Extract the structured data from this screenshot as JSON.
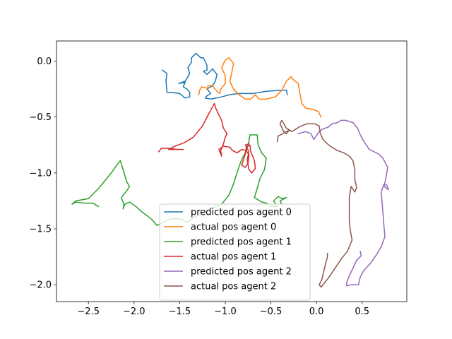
{
  "chart_data": {
    "type": "line",
    "title": "",
    "xlabel": "",
    "ylabel": "",
    "xlim": [
      -2.85,
      0.99
    ],
    "ylim": [
      -2.15,
      0.18
    ],
    "x_ticks": [
      -2.5,
      -2.0,
      -1.5,
      -1.0,
      -0.5,
      0.0,
      0.5
    ],
    "x_tick_labels": [
      "−2.5",
      "−2.0",
      "−1.5",
      "−1.0",
      "−0.5",
      "0.0",
      "0.5"
    ],
    "y_ticks": [
      0.0,
      -0.5,
      -1.0,
      -1.5,
      -2.0
    ],
    "y_tick_labels": [
      "0.0",
      "−0.5",
      "−1.0",
      "−1.5",
      "−2.0"
    ],
    "grid": false,
    "legend_position": "lower-center",
    "series": [
      {
        "name": "predicted pos agent 0",
        "color": "#1f77b4",
        "points": [
          [
            -1.69,
            -0.08
          ],
          [
            -1.64,
            -0.11
          ],
          [
            -1.65,
            -0.18
          ],
          [
            -1.64,
            -0.26
          ],
          [
            -1.64,
            -0.28
          ],
          [
            -1.6,
            -0.28
          ],
          [
            -1.5,
            -0.29
          ],
          [
            -1.44,
            -0.33
          ],
          [
            -1.39,
            -0.32
          ],
          [
            -1.39,
            -0.28
          ],
          [
            -1.42,
            -0.25
          ],
          [
            -1.46,
            -0.23
          ],
          [
            -1.44,
            -0.19
          ],
          [
            -1.51,
            -0.2
          ],
          [
            -1.44,
            -0.18
          ],
          [
            -1.41,
            -0.14
          ],
          [
            -1.39,
            -0.11
          ],
          [
            -1.41,
            -0.06
          ],
          [
            -1.37,
            -0.01
          ],
          [
            -1.37,
            0.03
          ],
          [
            -1.32,
            0.07
          ],
          [
            -1.27,
            0.03
          ],
          [
            -1.24,
            0.03
          ],
          [
            -1.2,
            -0.04
          ],
          [
            -1.2,
            -0.08
          ],
          [
            -1.24,
            -0.09
          ],
          [
            -1.2,
            -0.12
          ],
          [
            -1.14,
            -0.07
          ],
          [
            -1.09,
            -0.12
          ],
          [
            -1.11,
            -0.18
          ],
          [
            -1.14,
            -0.22
          ],
          [
            -1.2,
            -0.25
          ],
          [
            -1.16,
            -0.29
          ],
          [
            -1.2,
            -0.31
          ],
          [
            -1.22,
            -0.33
          ],
          [
            -1.16,
            -0.34
          ],
          [
            -1.04,
            -0.32
          ],
          [
            -0.95,
            -0.3
          ],
          [
            -0.85,
            -0.29
          ],
          [
            -0.7,
            -0.29
          ],
          [
            -0.55,
            -0.27
          ],
          [
            -0.38,
            -0.26
          ],
          [
            -0.33,
            -0.26
          ],
          [
            -0.32,
            -0.3
          ]
        ]
      },
      {
        "name": "actual pos agent 0",
        "color": "#ff7f0e",
        "points": [
          [
            -1.29,
            -0.3
          ],
          [
            -1.28,
            -0.26
          ],
          [
            -1.26,
            -0.23
          ],
          [
            -1.21,
            -0.24
          ],
          [
            -1.19,
            -0.25
          ],
          [
            -1.19,
            -0.22
          ],
          [
            -1.14,
            -0.22
          ],
          [
            -1.09,
            -0.27
          ],
          [
            -1.06,
            -0.29
          ],
          [
            -1.05,
            -0.25
          ],
          [
            -1.0,
            -0.2
          ],
          [
            -1.0,
            -0.13
          ],
          [
            -1.04,
            -0.06
          ],
          [
            -1.0,
            0.01
          ],
          [
            -0.96,
            0.03
          ],
          [
            -0.91,
            -0.02
          ],
          [
            -0.93,
            -0.11
          ],
          [
            -0.95,
            -0.18
          ],
          [
            -0.91,
            -0.25
          ],
          [
            -0.85,
            -0.3
          ],
          [
            -0.78,
            -0.34
          ],
          [
            -0.72,
            -0.34
          ],
          [
            -0.67,
            -0.3
          ],
          [
            -0.63,
            -0.34
          ],
          [
            -0.55,
            -0.34
          ],
          [
            -0.45,
            -0.32
          ],
          [
            -0.38,
            -0.26
          ],
          [
            -0.33,
            -0.18
          ],
          [
            -0.28,
            -0.14
          ],
          [
            -0.25,
            -0.17
          ],
          [
            -0.2,
            -0.2
          ],
          [
            -0.18,
            -0.3
          ],
          [
            -0.16,
            -0.38
          ],
          [
            -0.12,
            -0.42
          ],
          [
            -0.05,
            -0.43
          ],
          [
            0.02,
            -0.45
          ],
          [
            0.05,
            -0.5
          ]
        ]
      },
      {
        "name": "predicted pos agent 1",
        "color": "#2ca02c",
        "points": [
          [
            -2.39,
            -1.3
          ],
          [
            -2.45,
            -1.27
          ],
          [
            -2.55,
            -1.27
          ],
          [
            -2.64,
            -1.26
          ],
          [
            -2.68,
            -1.28
          ],
          [
            -2.64,
            -1.25
          ],
          [
            -2.5,
            -1.23
          ],
          [
            -2.39,
            -1.14
          ],
          [
            -2.32,
            -1.07
          ],
          [
            -2.25,
            -1.0
          ],
          [
            -2.18,
            -0.92
          ],
          [
            -2.15,
            -0.89
          ],
          [
            -2.12,
            -0.97
          ],
          [
            -2.08,
            -1.08
          ],
          [
            -2.05,
            -1.12
          ],
          [
            -2.08,
            -1.16
          ],
          [
            -2.14,
            -1.22
          ],
          [
            -2.11,
            -1.28
          ],
          [
            -2.12,
            -1.32
          ],
          [
            -2.1,
            -1.28
          ],
          [
            -2.05,
            -1.26
          ],
          [
            -1.98,
            -1.3
          ],
          [
            -1.91,
            -1.35
          ],
          [
            -1.86,
            -1.38
          ],
          [
            -1.8,
            -1.42
          ],
          [
            -1.75,
            -1.47
          ],
          [
            -1.7,
            -1.45
          ],
          [
            -1.6,
            -1.41
          ],
          [
            -1.5,
            -1.41
          ],
          [
            -1.42,
            -1.44
          ],
          [
            -1.35,
            -1.4
          ],
          [
            -1.25,
            -1.36
          ],
          [
            -1.14,
            -1.31
          ],
          [
            -1.04,
            -1.28
          ],
          [
            -0.96,
            -1.2
          ],
          [
            -0.91,
            -1.1
          ],
          [
            -0.88,
            -1.02
          ],
          [
            -0.83,
            -0.9
          ],
          [
            -0.77,
            -0.8
          ],
          [
            -0.74,
            -0.72
          ],
          [
            -0.73,
            -0.66
          ],
          [
            -0.65,
            -0.66
          ],
          [
            -0.64,
            -0.75
          ],
          [
            -0.6,
            -0.82
          ],
          [
            -0.55,
            -0.87
          ],
          [
            -0.57,
            -0.97
          ],
          [
            -0.62,
            -1.05
          ],
          [
            -0.65,
            -1.14
          ],
          [
            -0.68,
            -1.22
          ],
          [
            -0.6,
            -1.26
          ],
          [
            -0.55,
            -1.27
          ],
          [
            -0.5,
            -1.3
          ],
          [
            -0.43,
            -1.3
          ],
          [
            -0.47,
            -1.25
          ],
          [
            -0.42,
            -1.21
          ],
          [
            -0.38,
            -1.23
          ],
          [
            -0.33,
            -1.22
          ],
          [
            -0.4,
            -1.25
          ],
          [
            -0.38,
            -1.28
          ]
        ]
      },
      {
        "name": "actual pos agent 1",
        "color": "#d62728",
        "points": [
          [
            -1.73,
            -0.81
          ],
          [
            -1.7,
            -0.78
          ],
          [
            -1.62,
            -0.78
          ],
          [
            -1.53,
            -0.79
          ],
          [
            -1.46,
            -0.79
          ],
          [
            -1.62,
            -0.79
          ],
          [
            -1.55,
            -0.76
          ],
          [
            -1.45,
            -0.73
          ],
          [
            -1.35,
            -0.68
          ],
          [
            -1.25,
            -0.58
          ],
          [
            -1.18,
            -0.47
          ],
          [
            -1.12,
            -0.38
          ],
          [
            -1.1,
            -0.43
          ],
          [
            -1.04,
            -0.53
          ],
          [
            -1.02,
            -0.6
          ],
          [
            -0.98,
            -0.65
          ],
          [
            -1.0,
            -0.68
          ],
          [
            -1.02,
            -0.74
          ],
          [
            -1.05,
            -0.8
          ],
          [
            -1.04,
            -0.85
          ],
          [
            -1.07,
            -0.79
          ],
          [
            -1.02,
            -0.76
          ],
          [
            -0.95,
            -0.77
          ],
          [
            -0.92,
            -0.8
          ],
          [
            -0.87,
            -0.82
          ],
          [
            -0.82,
            -0.79
          ],
          [
            -0.77,
            -0.8
          ],
          [
            -0.74,
            -0.84
          ],
          [
            -0.75,
            -0.91
          ],
          [
            -0.78,
            -0.95
          ],
          [
            -0.82,
            -0.93
          ],
          [
            -0.8,
            -0.88
          ],
          [
            -0.78,
            -0.83
          ],
          [
            -0.77,
            -0.77
          ],
          [
            -0.73,
            -0.75
          ],
          [
            -0.72,
            -0.81
          ],
          [
            -0.68,
            -0.89
          ],
          [
            -0.67,
            -0.96
          ],
          [
            -0.71,
            -1.0
          ],
          [
            -0.74,
            -0.97
          ],
          [
            -0.76,
            -0.88
          ],
          [
            -0.74,
            -0.81
          ],
          [
            -0.78,
            -0.75
          ],
          [
            -0.74,
            -0.74
          ]
        ]
      },
      {
        "name": "predicted pos agent 2",
        "color": "#9467bd",
        "points": [
          [
            -0.2,
            -0.65
          ],
          [
            -0.12,
            -0.63
          ],
          [
            -0.06,
            -0.65
          ],
          [
            -0.03,
            -0.7
          ],
          [
            0.02,
            -0.64
          ],
          [
            0.06,
            -0.61
          ],
          [
            0.13,
            -0.59
          ],
          [
            0.17,
            -0.56
          ],
          [
            0.23,
            -0.55
          ],
          [
            0.27,
            -0.53
          ],
          [
            0.32,
            -0.53
          ],
          [
            0.4,
            -0.55
          ],
          [
            0.45,
            -0.6
          ],
          [
            0.48,
            -0.66
          ],
          [
            0.52,
            -0.72
          ],
          [
            0.58,
            -0.79
          ],
          [
            0.68,
            -0.83
          ],
          [
            0.73,
            -0.87
          ],
          [
            0.78,
            -0.95
          ],
          [
            0.76,
            -1.05
          ],
          [
            0.74,
            -1.12
          ],
          [
            0.79,
            -1.15
          ],
          [
            0.77,
            -1.11
          ],
          [
            0.74,
            -1.1
          ],
          [
            0.71,
            -1.17
          ],
          [
            0.72,
            -1.27
          ],
          [
            0.73,
            -1.37
          ],
          [
            0.74,
            -1.48
          ],
          [
            0.75,
            -1.57
          ],
          [
            0.71,
            -1.66
          ],
          [
            0.65,
            -1.74
          ],
          [
            0.59,
            -1.81
          ],
          [
            0.52,
            -1.87
          ],
          [
            0.48,
            -1.93
          ],
          [
            0.46,
            -2.0
          ],
          [
            0.38,
            -2.0
          ],
          [
            0.33,
            -2.01
          ],
          [
            0.33,
            -1.98
          ],
          [
            0.36,
            -1.92
          ],
          [
            0.4,
            -1.85
          ],
          [
            0.44,
            -1.78
          ],
          [
            0.49,
            -1.74
          ],
          [
            0.48,
            -1.7
          ]
        ]
      },
      {
        "name": "actual pos agent 2",
        "color": "#8c564b",
        "points": [
          [
            -0.43,
            -0.72
          ],
          [
            -0.42,
            -0.67
          ],
          [
            -0.37,
            -0.65
          ],
          [
            -0.33,
            -0.63
          ],
          [
            -0.3,
            -0.62
          ],
          [
            -0.33,
            -0.65
          ],
          [
            -0.36,
            -0.63
          ],
          [
            -0.4,
            -0.56
          ],
          [
            -0.38,
            -0.53
          ],
          [
            -0.33,
            -0.6
          ],
          [
            -0.27,
            -0.63
          ],
          [
            -0.21,
            -0.6
          ],
          [
            -0.17,
            -0.58
          ],
          [
            -0.1,
            -0.56
          ],
          [
            -0.02,
            -0.56
          ],
          [
            0.03,
            -0.58
          ],
          [
            0.04,
            -0.64
          ],
          [
            0.07,
            -0.7
          ],
          [
            0.12,
            -0.74
          ],
          [
            0.17,
            -0.77
          ],
          [
            0.23,
            -0.8
          ],
          [
            0.3,
            -0.82
          ],
          [
            0.36,
            -0.85
          ],
          [
            0.4,
            -0.89
          ],
          [
            0.42,
            -0.97
          ],
          [
            0.42,
            -1.06
          ],
          [
            0.44,
            -1.13
          ],
          [
            0.42,
            -1.17
          ],
          [
            0.38,
            -1.12
          ],
          [
            0.36,
            -1.22
          ],
          [
            0.36,
            -1.32
          ],
          [
            0.36,
            -1.42
          ],
          [
            0.37,
            -1.51
          ],
          [
            0.39,
            -1.6
          ],
          [
            0.34,
            -1.7
          ],
          [
            0.28,
            -1.76
          ],
          [
            0.23,
            -1.82
          ],
          [
            0.18,
            -1.88
          ],
          [
            0.13,
            -1.94
          ],
          [
            0.09,
            -1.98
          ],
          [
            0.05,
            -2.02
          ],
          [
            0.03,
            -2.0
          ],
          [
            0.06,
            -1.95
          ],
          [
            0.08,
            -1.88
          ],
          [
            0.1,
            -1.81
          ],
          [
            0.12,
            -1.75
          ],
          [
            0.12,
            -1.72
          ]
        ]
      }
    ]
  }
}
